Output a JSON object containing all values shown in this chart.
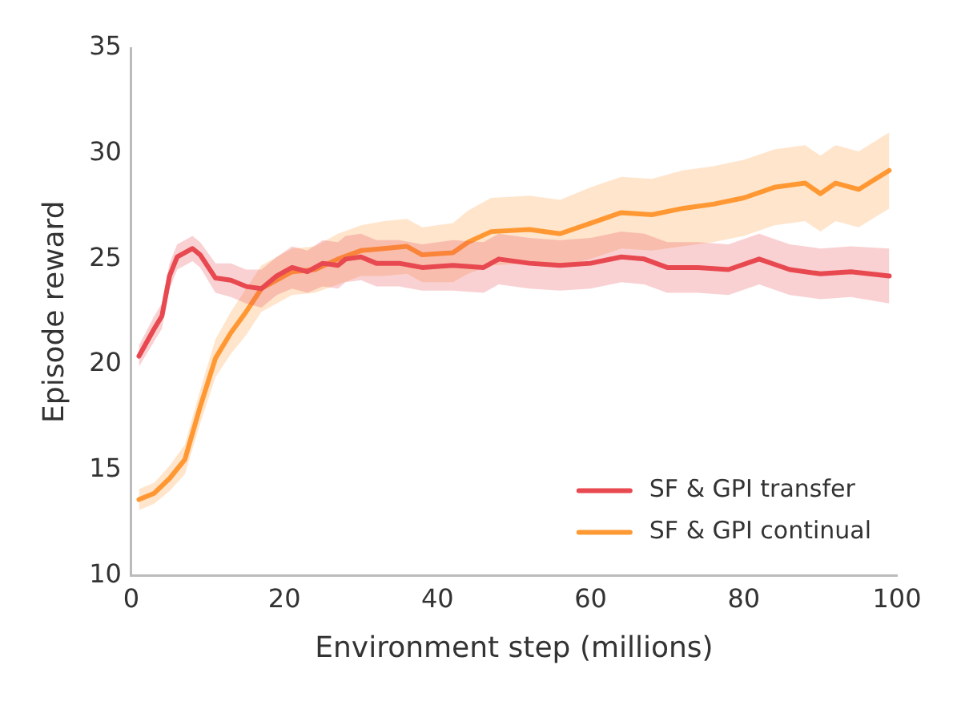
{
  "chart_data": {
    "type": "line",
    "xlabel": "Environment step (millions)",
    "ylabel": "Episode reward",
    "xlim": [
      0,
      100
    ],
    "xticks": [
      0,
      20,
      40,
      60,
      80,
      100
    ],
    "ylim": [
      10,
      35
    ],
    "yticks": [
      10,
      15,
      20,
      25,
      30,
      35
    ],
    "grid": false,
    "legend": "bottom right",
    "marker": "none",
    "line_style": "solid",
    "series": [
      {
        "name": "SF & GPI transfer",
        "color": "#e8484f",
        "x": [
          1,
          3,
          4,
          5,
          6,
          8,
          9,
          11,
          13,
          15,
          17,
          19,
          21,
          23,
          25,
          27,
          28,
          30,
          32,
          35,
          38,
          42,
          46,
          48,
          52,
          56,
          60,
          64,
          67,
          70,
          74,
          78,
          82,
          86,
          90,
          94,
          99
        ],
        "values": [
          20.4,
          21.7,
          22.3,
          24.2,
          25.1,
          25.5,
          25.2,
          24.1,
          24.0,
          23.7,
          23.6,
          24.2,
          24.6,
          24.4,
          24.8,
          24.7,
          25.0,
          25.1,
          24.8,
          24.8,
          24.6,
          24.7,
          24.6,
          25.0,
          24.8,
          24.7,
          24.8,
          25.1,
          25.0,
          24.6,
          24.6,
          24.5,
          25.0,
          24.5,
          24.3,
          24.4,
          24.2
        ],
        "lower": [
          19.9,
          21.1,
          21.7,
          23.6,
          24.5,
          24.9,
          24.6,
          23.4,
          23.2,
          22.9,
          22.7,
          23.3,
          23.6,
          23.4,
          23.7,
          23.6,
          23.9,
          24.0,
          23.7,
          23.7,
          23.5,
          23.5,
          23.4,
          23.8,
          23.6,
          23.5,
          23.6,
          23.9,
          23.8,
          23.4,
          23.4,
          23.3,
          23.8,
          23.3,
          23.1,
          23.2,
          22.9
        ],
        "upper": [
          20.9,
          22.3,
          22.9,
          24.8,
          25.7,
          26.1,
          25.8,
          24.8,
          24.8,
          24.5,
          24.5,
          25.1,
          25.6,
          25.4,
          25.9,
          25.8,
          26.1,
          26.2,
          25.9,
          25.9,
          25.7,
          25.9,
          25.8,
          26.2,
          26.0,
          25.9,
          26.0,
          26.3,
          26.2,
          25.8,
          25.8,
          25.7,
          26.2,
          25.7,
          25.5,
          25.6,
          25.5
        ]
      },
      {
        "name": "SF & GPI continual",
        "color": "#ff9933",
        "x": [
          1,
          3,
          5,
          7,
          9,
          11,
          13,
          15,
          17,
          19,
          21,
          24,
          27,
          30,
          33,
          36,
          38,
          42,
          44,
          47,
          52,
          56,
          60,
          64,
          68,
          72,
          76,
          80,
          84,
          88,
          90,
          92,
          95,
          99
        ],
        "values": [
          13.6,
          13.9,
          14.6,
          15.5,
          18.0,
          20.3,
          21.5,
          22.5,
          23.6,
          24.0,
          24.4,
          24.5,
          25.0,
          25.4,
          25.5,
          25.6,
          25.2,
          25.3,
          25.8,
          26.3,
          26.4,
          26.2,
          26.7,
          27.2,
          27.1,
          27.4,
          27.6,
          27.9,
          28.4,
          28.6,
          28.1,
          28.6,
          28.3,
          29.2
        ],
        "lower": [
          13.1,
          13.4,
          14.0,
          14.8,
          17.2,
          19.4,
          20.5,
          21.4,
          22.5,
          22.9,
          23.3,
          23.4,
          23.8,
          24.2,
          24.2,
          24.3,
          23.9,
          23.9,
          24.3,
          24.7,
          24.8,
          24.6,
          25.0,
          25.5,
          25.4,
          25.6,
          25.8,
          26.1,
          26.6,
          26.8,
          26.3,
          26.8,
          26.5,
          27.4
        ],
        "upper": [
          14.1,
          14.4,
          15.2,
          16.2,
          18.8,
          21.2,
          22.5,
          23.6,
          24.7,
          25.1,
          25.5,
          25.6,
          26.2,
          26.6,
          26.8,
          26.9,
          26.5,
          26.7,
          27.3,
          27.9,
          28.0,
          27.8,
          28.4,
          28.9,
          28.8,
          29.2,
          29.4,
          29.7,
          30.2,
          30.4,
          29.9,
          30.4,
          30.1,
          31.0
        ]
      }
    ]
  }
}
